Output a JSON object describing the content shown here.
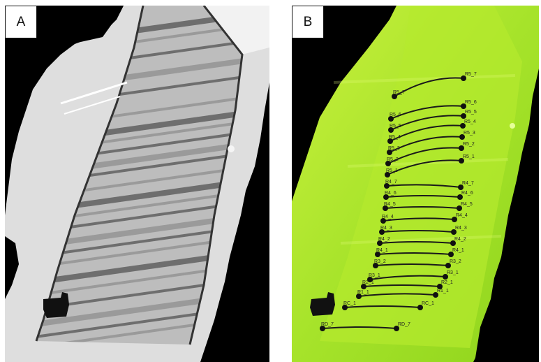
{
  "panels": [
    {
      "letter": "A",
      "description_colors": {
        "background": "#000000",
        "scan": "#e6e6e6",
        "stripe_dark": "#6e6e6e"
      }
    },
    {
      "letter": "B",
      "description_colors": {
        "background": "#000000",
        "scan": "#9bdc1e",
        "scan_light": "#c8f03a",
        "line": "#1a1a1a"
      }
    }
  ],
  "transects": [
    {
      "start": "R5_7",
      "end": "R5_7"
    },
    {
      "start": "R5_6",
      "end": "R5_6"
    },
    {
      "start": "R5_5",
      "end": "R5_5"
    },
    {
      "start": "R5_4",
      "end": "R5_4"
    },
    {
      "start": "R5_3",
      "end": "R5_3"
    },
    {
      "start": "R5_2",
      "end": "R5_2"
    },
    {
      "start": "R5_1",
      "end": "R5_1"
    },
    {
      "start": "R4_7",
      "end": "R4_7"
    },
    {
      "start": "R4_6",
      "end": "R4_6"
    },
    {
      "start": "R4_5",
      "end": "R4_5"
    },
    {
      "start": "R4_4",
      "end": "R4_4"
    },
    {
      "start": "R4_3",
      "end": "R4_3"
    },
    {
      "start": "R4_2",
      "end": "R4_2"
    },
    {
      "start": "R4_1",
      "end": "R4_1"
    },
    {
      "start": "R3_2",
      "end": "R3_2"
    },
    {
      "start": "R3_1",
      "end": "R3_1"
    },
    {
      "start": "R2_1",
      "end": "R2_1"
    },
    {
      "start": "R1_1",
      "end": "R1_1"
    },
    {
      "start": "RC_1",
      "end": "RC_1"
    },
    {
      "start": "RD_7",
      "end": "RD_7"
    }
  ]
}
